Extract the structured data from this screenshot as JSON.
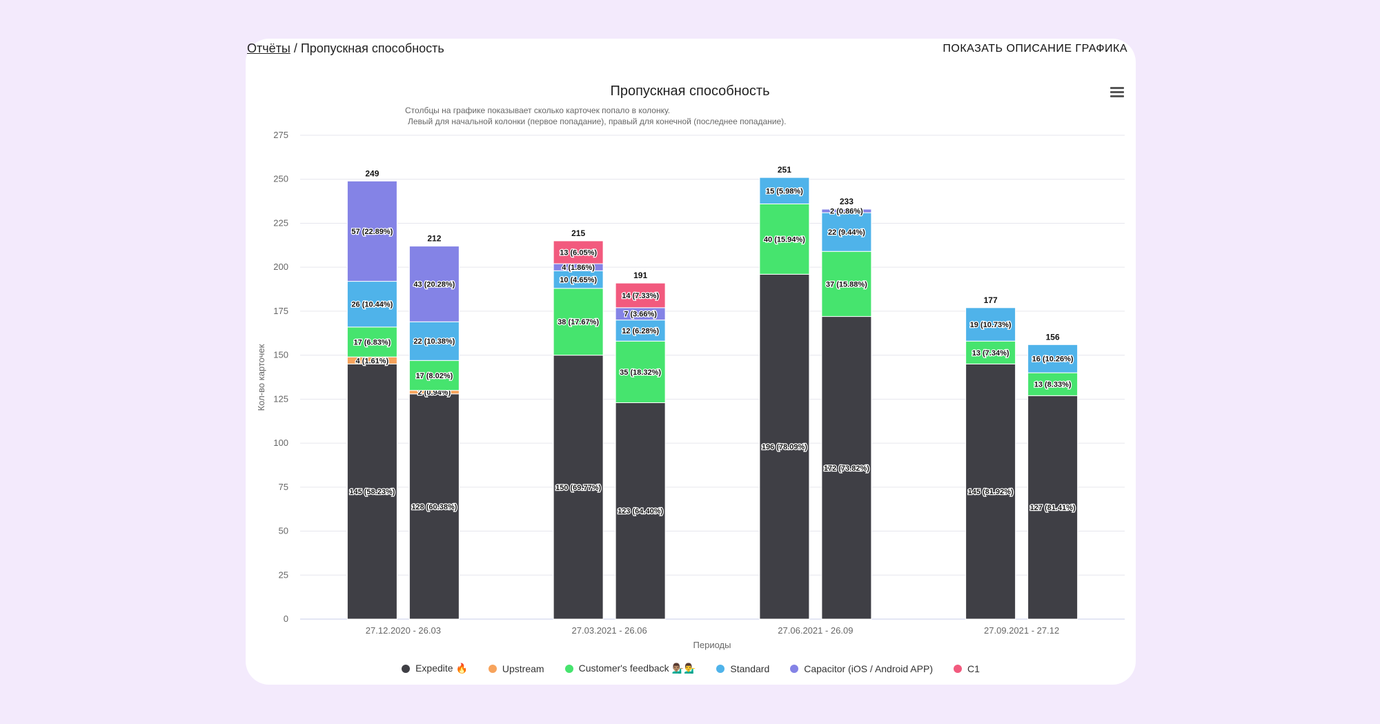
{
  "breadcrumb": {
    "parent": "Отчёты",
    "separator": " / ",
    "current": "Пропускная способность"
  },
  "header": {
    "show_description": "ПОКАЗАТЬ ОПИСАНИЕ ГРАФИКА"
  },
  "menu": {
    "icon": "hamburger-icon"
  },
  "chart_data": {
    "type": "bar",
    "stacked": true,
    "title": "Пропускная способность",
    "subtitle_lines": [
      "Столбцы на графике показывает сколько карточек попало в колонку.",
      "Левый для начальной колонки (первое попадание), правый для конечной (последнее попадание)."
    ],
    "xlabel": "Периоды",
    "ylabel": "Кол-во карточек",
    "ylim": [
      0,
      275
    ],
    "yticks": [
      0,
      25,
      50,
      75,
      100,
      125,
      150,
      175,
      200,
      225,
      250,
      275
    ],
    "categories": [
      "27.12.2020 - 26.03",
      "27.03.2021 - 26.06",
      "27.06.2021 - 26.09",
      "27.09.2021 - 27.12"
    ],
    "bars_per_category": [
      "start",
      "end"
    ],
    "series": [
      {
        "name": "Expedite 🔥",
        "color": "#3f3f45",
        "values": [
          [
            145,
            128
          ],
          [
            150,
            123
          ],
          [
            196,
            172
          ],
          [
            145,
            127
          ]
        ],
        "labels": [
          [
            "145 (58.23%)",
            "128 (60.38%)"
          ],
          [
            "150 (69.77%)",
            "123 (64.40%)"
          ],
          [
            "196 (78.09%)",
            "172 (73.82%)"
          ],
          [
            "145 (81.92%)",
            "127 (81.41%)"
          ]
        ]
      },
      {
        "name": "Upstream",
        "color": "#f7a35c",
        "values": [
          [
            4,
            2
          ],
          [
            0,
            0
          ],
          [
            0,
            0
          ],
          [
            0,
            0
          ]
        ],
        "labels": [
          [
            "4 (1.61%)",
            "2 (0.94%)"
          ],
          [
            "",
            ""
          ],
          [
            "",
            ""
          ],
          [
            "",
            ""
          ]
        ]
      },
      {
        "name": "Customer's feedback 💁🏽‍♂️💁‍♂️",
        "color": "#46e46e",
        "values": [
          [
            17,
            17
          ],
          [
            38,
            35
          ],
          [
            40,
            37
          ],
          [
            13,
            13
          ]
        ],
        "labels": [
          [
            "17 (6.83%)",
            "17 (8.02%)"
          ],
          [
            "38 (17.67%)",
            "35 (18.32%)"
          ],
          [
            "40 (15.94%)",
            "37 (15.88%)"
          ],
          [
            "13 (7.34%)",
            "13 (8.33%)"
          ]
        ]
      },
      {
        "name": "Standard",
        "color": "#4fb3ea",
        "values": [
          [
            26,
            22
          ],
          [
            10,
            12
          ],
          [
            15,
            22
          ],
          [
            19,
            16
          ]
        ],
        "labels": [
          [
            "26 (10.44%)",
            "22 (10.38%)"
          ],
          [
            "10 (4.65%)",
            "12 (6.28%)"
          ],
          [
            "15 (5.98%)",
            "22 (9.44%)"
          ],
          [
            "19 (10.73%)",
            "16 (10.26%)"
          ]
        ]
      },
      {
        "name": "Capacitor (iOS / Android APP)",
        "color": "#8483e6",
        "values": [
          [
            57,
            43
          ],
          [
            4,
            7
          ],
          [
            0,
            2
          ],
          [
            0,
            0
          ]
        ],
        "labels": [
          [
            "57 (22.89%)",
            "43 (20.28%)"
          ],
          [
            "4 (1.86%)",
            "7 (3.66%)"
          ],
          [
            "",
            "2 (0.86%)"
          ],
          [
            "",
            ""
          ]
        ]
      },
      {
        "name": "C1",
        "color": "#f25a7e",
        "values": [
          [
            0,
            0
          ],
          [
            13,
            14
          ],
          [
            0,
            0
          ],
          [
            0,
            0
          ]
        ],
        "labels": [
          [
            "",
            ""
          ],
          [
            "13 (6.05%)",
            "14 (7.33%)"
          ],
          [
            "",
            ""
          ],
          [
            "",
            ""
          ]
        ]
      }
    ],
    "totals": [
      [
        249,
        212
      ],
      [
        215,
        191
      ],
      [
        251,
        233
      ],
      [
        177,
        156
      ]
    ],
    "legend_position": "bottom"
  }
}
